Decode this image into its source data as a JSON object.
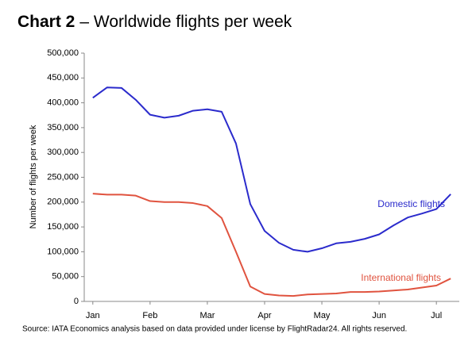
{
  "chart_data": {
    "type": "line",
    "title_label": "Chart 2",
    "title": "– Worldwide flights per week",
    "y_label": "Number of flights per week",
    "source": "Source: IATA Economics analysis based on data provided under license by FlightRadar24. All rights reserved.",
    "x": [
      1,
      2,
      3,
      4,
      5,
      6,
      7,
      8,
      9,
      10,
      11,
      12,
      13,
      14,
      15,
      16,
      17,
      18,
      19,
      20,
      21,
      22,
      23,
      24,
      25,
      26
    ],
    "xlim": [
      0.4,
      26.6
    ],
    "xticks": [
      {
        "value": 1,
        "label": "Jan"
      },
      {
        "value": 5,
        "label": "Feb"
      },
      {
        "value": 9,
        "label": "Mar"
      },
      {
        "value": 13,
        "label": "Apr"
      },
      {
        "value": 17,
        "label": "May"
      },
      {
        "value": 21,
        "label": "Jun"
      },
      {
        "value": 25,
        "label": "Jul"
      }
    ],
    "ylim": [
      0,
      500000
    ],
    "yticks": [
      0,
      {
        "value": 50000,
        "label": "50,000"
      },
      {
        "value": 100000,
        "label": "100,000"
      },
      {
        "value": 150000,
        "label": "150,000"
      },
      {
        "value": 200000,
        "label": "200,000"
      },
      {
        "value": 250000,
        "label": "250,000"
      },
      {
        "value": 300000,
        "label": "300,000"
      },
      {
        "value": 350000,
        "label": "350,000"
      },
      {
        "value": 400000,
        "label": "400,000"
      },
      {
        "value": 450000,
        "label": "450,000"
      },
      {
        "value": 500000,
        "label": "500,000"
      }
    ],
    "grid": false,
    "series": [
      {
        "name": "Domestic flights",
        "color": "#2b2bcc",
        "values": [
          410000,
          431000,
          430000,
          406000,
          376000,
          370000,
          374000,
          384000,
          387000,
          382000,
          318000,
          196000,
          142000,
          118000,
          104000,
          100000,
          107000,
          117000,
          120000,
          126000,
          135000,
          153000,
          169000,
          177000,
          186000,
          216000
        ]
      },
      {
        "name": "International flights",
        "color": "#e0533f",
        "values": [
          217000,
          215000,
          215000,
          213000,
          202000,
          200000,
          200000,
          198000,
          192000,
          168000,
          100000,
          30000,
          15000,
          12000,
          11000,
          14000,
          15000,
          16000,
          19000,
          19000,
          20000,
          22000,
          24000,
          28000,
          32000,
          46000
        ]
      }
    ]
  }
}
